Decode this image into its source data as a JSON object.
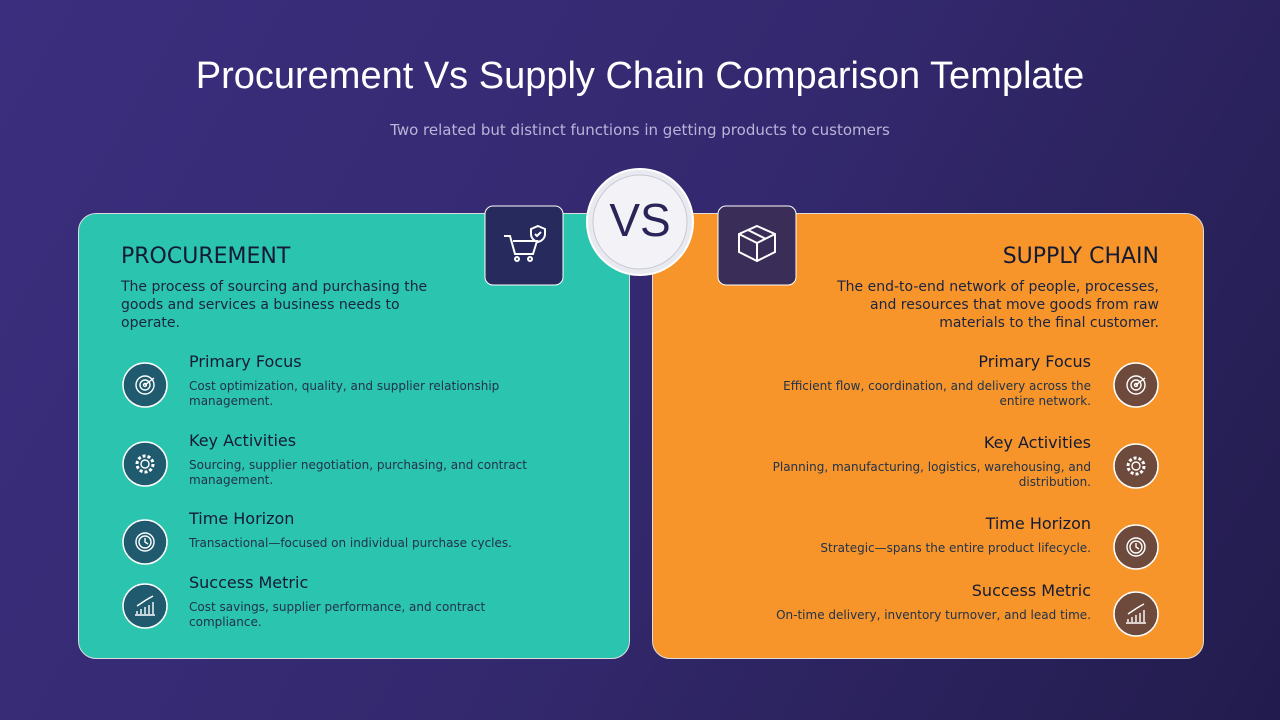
{
  "header": {
    "title": "Procurement Vs Supply Chain Comparison Template",
    "subtitle": "Two related but distinct functions in getting products to customers"
  },
  "vs": "VS",
  "panels": [
    {
      "title": "PROCUREMENT",
      "description": "The process of sourcing and purchasing the goods and services a business needs to operate.",
      "items": [
        {
          "title": "Primary Focus",
          "text": "Cost optimization, quality, and supplier relationship management."
        },
        {
          "title": "Key Activities",
          "text": "Sourcing, supplier negotiation, purchasing, and contract management."
        },
        {
          "title": "Time Horizon",
          "text": "Transactional—focused on individual purchase cycles."
        },
        {
          "title": "Success Metric",
          "text": "Cost savings, supplier performance, and contract compliance."
        }
      ]
    },
    {
      "title": "SUPPLY CHAIN",
      "description": "The end-to-end network of people, processes, and resources that move goods from raw materials to the final customer.",
      "items": [
        {
          "title": "Primary Focus",
          "text": "Efficient flow, coordination, and delivery across the entire network."
        },
        {
          "title": "Key Activities",
          "text": "Planning, manufacturing, logistics, warehousing, and distribution."
        },
        {
          "title": "Time Horizon",
          "text": "Strategic—spans the entire product lifecycle."
        },
        {
          "title": "Success Metric",
          "text": "On-time delivery, inventory turnover, and lead time."
        }
      ]
    }
  ]
}
